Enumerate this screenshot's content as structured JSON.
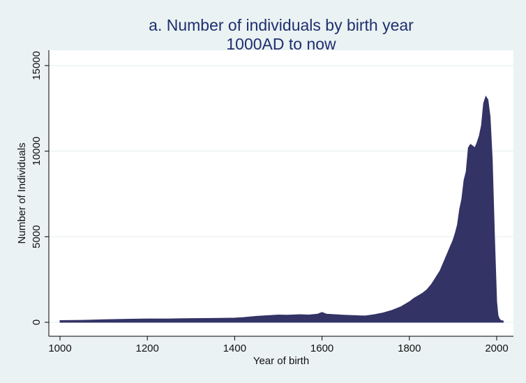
{
  "chart_data": {
    "type": "area",
    "title": "a. Number of individuals by birth year",
    "subtitle": "1000AD to now",
    "xlabel": "Year of birth",
    "ylabel": "Number of Individuals",
    "xlim": [
      990,
      2025
    ],
    "ylim": [
      0,
      15500
    ],
    "xticks": [
      1000,
      1200,
      1400,
      1600,
      1800,
      2000
    ],
    "yticks": [
      0,
      5000,
      10000,
      15000
    ],
    "xtick_labels": [
      "1000",
      "1200",
      "1400",
      "1600",
      "1800",
      "2000"
    ],
    "ytick_labels": [
      "0",
      "5000",
      "10000",
      "15000"
    ],
    "grid": true,
    "legend": "none",
    "x": [
      1000,
      1050,
      1100,
      1150,
      1200,
      1250,
      1300,
      1350,
      1400,
      1420,
      1450,
      1480,
      1500,
      1520,
      1550,
      1570,
      1590,
      1600,
      1610,
      1630,
      1650,
      1670,
      1690,
      1700,
      1720,
      1740,
      1760,
      1780,
      1800,
      1810,
      1820,
      1830,
      1840,
      1850,
      1860,
      1870,
      1880,
      1890,
      1900,
      1905,
      1910,
      1915,
      1920,
      1925,
      1930,
      1935,
      1940,
      1945,
      1950,
      1955,
      1960,
      1965,
      1970,
      1975,
      1980,
      1985,
      1990,
      1995,
      2000,
      2003,
      2006,
      2010,
      2015
    ],
    "values": [
      100,
      120,
      150,
      180,
      200,
      200,
      220,
      230,
      250,
      280,
      350,
      400,
      430,
      420,
      450,
      430,
      480,
      580,
      480,
      450,
      420,
      400,
      380,
      380,
      450,
      550,
      700,
      900,
      1200,
      1400,
      1550,
      1700,
      1900,
      2200,
      2600,
      3000,
      3600,
      4200,
      4800,
      5200,
      5700,
      6600,
      7200,
      8300,
      8800,
      10200,
      10400,
      10300,
      10200,
      10500,
      10900,
      11500,
      12800,
      13200,
      13000,
      12000,
      9500,
      5000,
      1200,
      400,
      200,
      100,
      80
    ],
    "series_color": "#333366",
    "background": "#eaf2f3",
    "plot_background": "#ffffff",
    "title_color": "#1f2f6f"
  }
}
